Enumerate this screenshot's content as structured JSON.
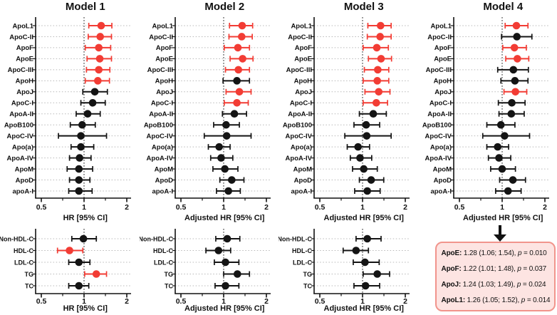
{
  "colors": {
    "significant": "#f23c34",
    "nonsignificant": "#141414",
    "axis": "#111111",
    "gridline": "#b8b8b8",
    "refline": "#3a3a3a",
    "annotation_fill": "#fde4e2",
    "annotation_border": "#f1948c"
  },
  "chart_data": [
    {
      "type": "forest",
      "x_scale": "log",
      "title": "Model 1",
      "xlabel": "HR [95% CI]",
      "xlim": [
        0.5,
        2
      ],
      "ref_line": 1,
      "x_minor_ticks": [
        0.7071,
        1.4142
      ],
      "x_ticks": [
        {
          "v": 0.5,
          "label": "0.5"
        },
        {
          "v": 1,
          "label": "1"
        },
        {
          "v": 2,
          "label": "2"
        }
      ],
      "points": [
        {
          "label": "ApoL1",
          "hr": 1.32,
          "lo": 1.08,
          "hi": 1.57,
          "sig": true
        },
        {
          "label": "ApoC-II",
          "hr": 1.3,
          "lo": 1.07,
          "hi": 1.56,
          "sig": true
        },
        {
          "label": "ApoF",
          "hr": 1.27,
          "lo": 1.02,
          "hi": 1.54,
          "sig": true
        },
        {
          "label": "ApoE",
          "hr": 1.29,
          "lo": 1.05,
          "hi": 1.56,
          "sig": true
        },
        {
          "label": "ApoC-III",
          "hr": 1.27,
          "lo": 1.04,
          "hi": 1.52,
          "sig": true
        },
        {
          "label": "ApoH",
          "hr": 1.25,
          "lo": 1.02,
          "hi": 1.51,
          "sig": true
        },
        {
          "label": "ApoJ",
          "hr": 1.19,
          "lo": 0.98,
          "hi": 1.46,
          "sig": false
        },
        {
          "label": "ApoC-I",
          "hr": 1.15,
          "lo": 0.95,
          "hi": 1.41,
          "sig": false
        },
        {
          "label": "ApoA-II",
          "hr": 1.06,
          "lo": 0.88,
          "hi": 1.3,
          "sig": false
        },
        {
          "label": "ApoB100",
          "hr": 0.97,
          "lo": 0.8,
          "hi": 1.2,
          "sig": false
        },
        {
          "label": "ApoC-IV",
          "hr": 0.95,
          "lo": 0.66,
          "hi": 1.44,
          "sig": false
        },
        {
          "label": "Apo(a)",
          "hr": 0.95,
          "lo": 0.81,
          "hi": 1.17,
          "sig": false
        },
        {
          "label": "ApoA-IV",
          "hr": 0.93,
          "lo": 0.79,
          "hi": 1.12,
          "sig": false
        },
        {
          "label": "ApoM",
          "hr": 0.92,
          "lo": 0.76,
          "hi": 1.15,
          "sig": false
        },
        {
          "label": "ApoD",
          "hr": 0.92,
          "lo": 0.79,
          "hi": 1.1,
          "sig": false
        },
        {
          "label": "apoA-I",
          "hr": 0.92,
          "lo": 0.78,
          "hi": 1.14,
          "sig": false
        }
      ]
    },
    {
      "type": "forest",
      "x_scale": "log",
      "title": "Model 2",
      "xlabel": "Adjusted HR [95% CI]",
      "xlim": [
        0.5,
        2
      ],
      "ref_line": 1,
      "x_minor_ticks": [
        0.7071,
        1.4142
      ],
      "x_ticks": [
        {
          "v": 0.5,
          "label": "0.5"
        },
        {
          "v": 1,
          "label": "1"
        },
        {
          "v": 2,
          "label": "2"
        }
      ],
      "points": [
        {
          "label": "ApoL1",
          "hr": 1.35,
          "lo": 1.1,
          "hi": 1.6,
          "sig": true
        },
        {
          "label": "ApoC-II",
          "hr": 1.34,
          "lo": 1.09,
          "hi": 1.59,
          "sig": true
        },
        {
          "label": "ApoF",
          "hr": 1.26,
          "lo": 1.01,
          "hi": 1.52,
          "sig": true
        },
        {
          "label": "ApoE",
          "hr": 1.36,
          "lo": 1.11,
          "hi": 1.61,
          "sig": true
        },
        {
          "label": "ApoC-III",
          "hr": 1.27,
          "lo": 1.03,
          "hi": 1.52,
          "sig": true
        },
        {
          "label": "ApoH",
          "hr": 1.24,
          "lo": 0.99,
          "hi": 1.52,
          "sig": false
        },
        {
          "label": "ApoJ",
          "hr": 1.29,
          "lo": 1.04,
          "hi": 1.56,
          "sig": true
        },
        {
          "label": "ApoC-I",
          "hr": 1.24,
          "lo": 1.01,
          "hi": 1.49,
          "sig": true
        },
        {
          "label": "ApoA-II",
          "hr": 1.19,
          "lo": 0.98,
          "hi": 1.45,
          "sig": false
        },
        {
          "label": "ApoB100",
          "hr": 1.04,
          "lo": 0.85,
          "hi": 1.29,
          "sig": false
        },
        {
          "label": "ApoC-IV",
          "hr": 1.05,
          "lo": 0.73,
          "hi": 1.56,
          "sig": false
        },
        {
          "label": "Apo(a)",
          "hr": 0.93,
          "lo": 0.78,
          "hi": 1.11,
          "sig": false
        },
        {
          "label": "ApoA-IV",
          "hr": 0.96,
          "lo": 0.81,
          "hi": 1.16,
          "sig": false
        },
        {
          "label": "ApoM",
          "hr": 1.02,
          "lo": 0.84,
          "hi": 1.26,
          "sig": false
        },
        {
          "label": "ApoD",
          "hr": 1.14,
          "lo": 0.94,
          "hi": 1.39,
          "sig": false
        },
        {
          "label": "apoA-I",
          "hr": 1.08,
          "lo": 0.89,
          "hi": 1.31,
          "sig": false
        }
      ]
    },
    {
      "type": "forest",
      "x_scale": "log",
      "title": "Model 3",
      "xlabel": "Adjusted HR [95% CI]",
      "xlim": [
        0.5,
        2
      ],
      "ref_line": 1,
      "x_minor_ticks": [
        0.7071,
        1.4142
      ],
      "x_ticks": [
        {
          "v": 0.5,
          "label": "0.5"
        },
        {
          "v": 1,
          "label": "1"
        },
        {
          "v": 2,
          "label": "2"
        }
      ],
      "points": [
        {
          "label": "ApoL1",
          "hr": 1.34,
          "lo": 1.09,
          "hi": 1.59,
          "sig": true
        },
        {
          "label": "ApoC-II",
          "hr": 1.33,
          "lo": 1.08,
          "hi": 1.59,
          "sig": true
        },
        {
          "label": "ApoF",
          "hr": 1.26,
          "lo": 1.01,
          "hi": 1.52,
          "sig": true
        },
        {
          "label": "ApoE",
          "hr": 1.35,
          "lo": 1.1,
          "hi": 1.6,
          "sig": true
        },
        {
          "label": "ApoC-III",
          "hr": 1.28,
          "lo": 1.03,
          "hi": 1.53,
          "sig": true
        },
        {
          "label": "ApoH",
          "hr": 1.27,
          "lo": 1.01,
          "hi": 1.53,
          "sig": true
        },
        {
          "label": "ApoJ",
          "hr": 1.3,
          "lo": 1.04,
          "hi": 1.56,
          "sig": true
        },
        {
          "label": "ApoC-I",
          "hr": 1.25,
          "lo": 1.01,
          "hi": 1.5,
          "sig": true
        },
        {
          "label": "ApoA-II",
          "hr": 1.19,
          "lo": 0.95,
          "hi": 1.47,
          "sig": false
        },
        {
          "label": "ApoB100",
          "hr": 1.06,
          "lo": 0.87,
          "hi": 1.32,
          "sig": false
        },
        {
          "label": "ApoC-IV",
          "hr": 1.07,
          "lo": 0.75,
          "hi": 1.59,
          "sig": false
        },
        {
          "label": "Apo(a)",
          "hr": 0.93,
          "lo": 0.78,
          "hi": 1.12,
          "sig": false
        },
        {
          "label": "ApoA-IV",
          "hr": 0.96,
          "lo": 0.82,
          "hi": 1.16,
          "sig": false
        },
        {
          "label": "ApoM",
          "hr": 1.02,
          "lo": 0.85,
          "hi": 1.27,
          "sig": false
        },
        {
          "label": "ApoD",
          "hr": 1.15,
          "lo": 0.95,
          "hi": 1.41,
          "sig": false
        },
        {
          "label": "apoA-I",
          "hr": 1.08,
          "lo": 0.88,
          "hi": 1.33,
          "sig": false
        }
      ]
    },
    {
      "type": "forest",
      "x_scale": "log",
      "title": "Model 4",
      "xlabel": "Adjusted HR [95% CI]",
      "xlim": [
        0.5,
        2
      ],
      "ref_line": 1,
      "x_minor_ticks": [
        0.7071,
        1.4142
      ],
      "x_ticks": [
        {
          "v": 0.5,
          "label": "0.5"
        },
        {
          "v": 1,
          "label": "1"
        },
        {
          "v": 2,
          "label": "2"
        }
      ],
      "points": [
        {
          "label": "ApoL1",
          "hr": 1.26,
          "lo": 1.05,
          "hi": 1.52,
          "sig": true
        },
        {
          "label": "ApoC-II",
          "hr": 1.27,
          "lo": 0.99,
          "hi": 1.62,
          "sig": false
        },
        {
          "label": "ApoF",
          "hr": 1.22,
          "lo": 1.01,
          "hi": 1.48,
          "sig": true
        },
        {
          "label": "ApoE",
          "hr": 1.28,
          "lo": 1.06,
          "hi": 1.54,
          "sig": true
        },
        {
          "label": "ApoC-III",
          "hr": 1.2,
          "lo": 0.93,
          "hi": 1.53,
          "sig": false
        },
        {
          "label": "ApoH",
          "hr": 1.23,
          "lo": 0.98,
          "hi": 1.52,
          "sig": false
        },
        {
          "label": "ApoJ",
          "hr": 1.24,
          "lo": 1.03,
          "hi": 1.49,
          "sig": true
        },
        {
          "label": "ApoC-I",
          "hr": 1.17,
          "lo": 0.94,
          "hi": 1.45,
          "sig": false
        },
        {
          "label": "ApoA-II",
          "hr": 1.16,
          "lo": 0.95,
          "hi": 1.43,
          "sig": false
        },
        {
          "label": "ApoB100",
          "hr": 0.98,
          "lo": 0.78,
          "hi": 1.23,
          "sig": false
        },
        {
          "label": "ApoC-IV",
          "hr": 1.04,
          "lo": 0.73,
          "hi": 1.56,
          "sig": false
        },
        {
          "label": "Apo(a)",
          "hr": 0.93,
          "lo": 0.78,
          "hi": 1.11,
          "sig": false
        },
        {
          "label": "ApoA-IV",
          "hr": 0.95,
          "lo": 0.8,
          "hi": 1.15,
          "sig": false
        },
        {
          "label": "ApoM",
          "hr": 1.0,
          "lo": 0.83,
          "hi": 1.24,
          "sig": false
        },
        {
          "label": "ApoD",
          "hr": 1.19,
          "lo": 0.96,
          "hi": 1.46,
          "sig": false
        },
        {
          "label": "apoA-I",
          "hr": 1.1,
          "lo": 0.9,
          "hi": 1.36,
          "sig": false
        }
      ]
    },
    {
      "type": "forest",
      "x_scale": "log",
      "title": "",
      "xlabel": "HR [95% CI]",
      "xlim": [
        0.5,
        2
      ],
      "ref_line": 1,
      "x_minor_ticks": [
        0.7071,
        1.4142
      ],
      "x_ticks": [
        {
          "v": 0.5,
          "label": "0.5"
        },
        {
          "v": 1,
          "label": "1"
        },
        {
          "v": 2,
          "label": "2"
        }
      ],
      "points": [
        {
          "label": "Non-HDL-C",
          "hr": 0.99,
          "lo": 0.82,
          "hi": 1.22,
          "sig": false
        },
        {
          "label": "HDL-C",
          "hr": 0.79,
          "lo": 0.65,
          "hi": 0.98,
          "sig": true
        },
        {
          "label": "LDL-C",
          "hr": 0.92,
          "lo": 0.78,
          "hi": 1.1,
          "sig": false
        },
        {
          "label": "TG",
          "hr": 1.22,
          "lo": 1.01,
          "hi": 1.44,
          "sig": true
        },
        {
          "label": "TC",
          "hr": 0.92,
          "lo": 0.78,
          "hi": 1.08,
          "sig": false
        }
      ]
    },
    {
      "type": "forest",
      "x_scale": "log",
      "title": "",
      "xlabel": "Adjusted HR [95% CI]",
      "xlim": [
        0.5,
        2
      ],
      "ref_line": 1,
      "x_minor_ticks": [
        0.7071,
        1.4142
      ],
      "x_ticks": [
        {
          "v": 0.5,
          "label": "0.5"
        },
        {
          "v": 1,
          "label": "1"
        },
        {
          "v": 2,
          "label": "2"
        }
      ],
      "points": [
        {
          "label": "Non-HDL-C",
          "hr": 1.06,
          "lo": 0.88,
          "hi": 1.3,
          "sig": false
        },
        {
          "label": "HDL-C",
          "hr": 0.92,
          "lo": 0.75,
          "hi": 1.12,
          "sig": false
        },
        {
          "label": "LDL-C",
          "hr": 1.03,
          "lo": 0.86,
          "hi": 1.28,
          "sig": false
        },
        {
          "label": "TG",
          "hr": 1.25,
          "lo": 1.0,
          "hi": 1.52,
          "sig": false
        },
        {
          "label": "TC",
          "hr": 1.03,
          "lo": 0.87,
          "hi": 1.28,
          "sig": false
        }
      ]
    },
    {
      "type": "forest",
      "x_scale": "log",
      "title": "",
      "xlabel": "Adjusted HR [95% CI]",
      "xlim": [
        0.5,
        2
      ],
      "ref_line": 1,
      "x_minor_ticks": [
        0.7071,
        1.4142
      ],
      "x_ticks": [
        {
          "v": 0.5,
          "label": "0.5"
        },
        {
          "v": 1,
          "label": "1"
        },
        {
          "v": 2,
          "label": "2"
        }
      ],
      "points": [
        {
          "label": "Non-HDL-C",
          "hr": 1.08,
          "lo": 0.9,
          "hi": 1.35,
          "sig": false
        },
        {
          "label": "HDL-C",
          "hr": 0.9,
          "lo": 0.73,
          "hi": 1.1,
          "sig": false
        },
        {
          "label": "LDL-C",
          "hr": 1.04,
          "lo": 0.86,
          "hi": 1.31,
          "sig": false
        },
        {
          "label": "TG",
          "hr": 1.27,
          "lo": 1.01,
          "hi": 1.55,
          "sig": false
        },
        {
          "label": "TC",
          "hr": 1.05,
          "lo": 0.87,
          "hi": 1.32,
          "sig": false
        }
      ]
    }
  ],
  "annotation": {
    "lines": [
      {
        "name": "ApoE:",
        "stats": " 1.28 (1.06; 1.54), ",
        "p": "p",
        "pv": " = 0.010"
      },
      {
        "name": "ApoF:",
        "stats": " 1.22 (1.01; 1.48), ",
        "p": "p",
        "pv": " = 0.037"
      },
      {
        "name": "ApoJ:",
        "stats": " 1.24 (1.03; 1.49), ",
        "p": "p",
        "pv": " = 0.024"
      },
      {
        "name": "ApoL1:",
        "stats": " 1.26 (1.05; 1.52), ",
        "p": "p",
        "pv": " = 0.014"
      }
    ]
  }
}
